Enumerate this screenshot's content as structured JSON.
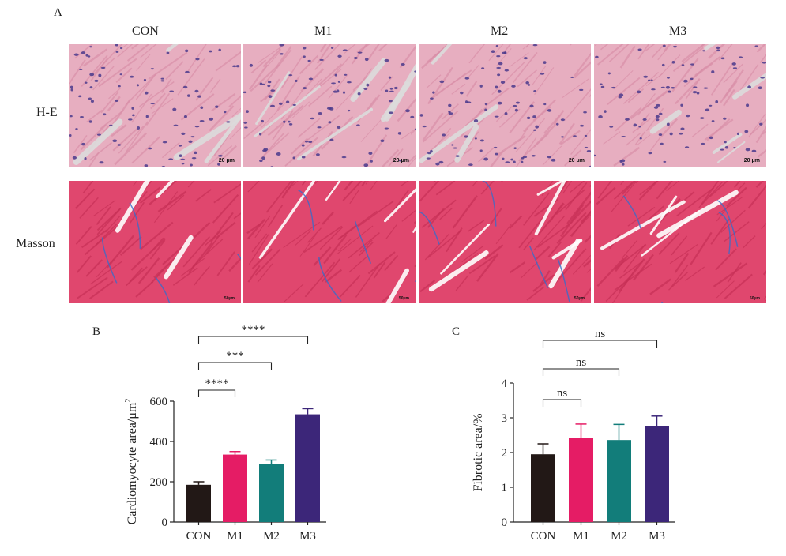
{
  "panel_labels": {
    "a": "A",
    "b": "B",
    "c": "C"
  },
  "columns": [
    "CON",
    "M1",
    "M2",
    "M3"
  ],
  "rows": [
    "H-E",
    "Masson"
  ],
  "scale_bars": [
    "20 μm",
    "20 μm",
    "20 μm",
    "20 μm",
    "50μm",
    "50μm",
    "50μm",
    "50μm"
  ],
  "colors": {
    "CON": "#221816",
    "M1": "#e51c65",
    "M2": "#127d7a",
    "M3": "#3c2679",
    "he_tissue": "#e7aec0",
    "he_nuclei": "#4a3a8c",
    "masson_tissue": "#e0476e",
    "masson_collagen": "#3a6bc8"
  },
  "chart_data": [
    {
      "type": "bar",
      "title": "",
      "categories": [
        "CON",
        "M1",
        "M2",
        "M3"
      ],
      "values": [
        185,
        335,
        290,
        535
      ],
      "errors": [
        15,
        15,
        18,
        28
      ],
      "ylabel": "Cardiomyocyte area/μm",
      "ylabel_sup": "2",
      "xlabel": "",
      "ylim": [
        0,
        600
      ],
      "yticks": [
        "0",
        "200",
        "400",
        "600"
      ],
      "comparisons": [
        {
          "pair": [
            "CON",
            "M1"
          ],
          "label": "****"
        },
        {
          "pair": [
            "CON",
            "M2"
          ],
          "label": "***"
        },
        {
          "pair": [
            "CON",
            "M3"
          ],
          "label": "****"
        }
      ]
    },
    {
      "type": "bar",
      "title": "",
      "categories": [
        "CON",
        "M1",
        "M2",
        "M3"
      ],
      "values": [
        1.95,
        2.42,
        2.36,
        2.75
      ],
      "errors": [
        0.3,
        0.4,
        0.45,
        0.3
      ],
      "ylabel": "Fibrotic area/%",
      "xlabel": "",
      "ylim": [
        0,
        4
      ],
      "yticks": [
        "0",
        "1",
        "2",
        "3",
        "4"
      ],
      "comparisons": [
        {
          "pair": [
            "CON",
            "M1"
          ],
          "label": "ns"
        },
        {
          "pair": [
            "CON",
            "M2"
          ],
          "label": "ns"
        },
        {
          "pair": [
            "CON",
            "M3"
          ],
          "label": "ns"
        }
      ]
    }
  ]
}
